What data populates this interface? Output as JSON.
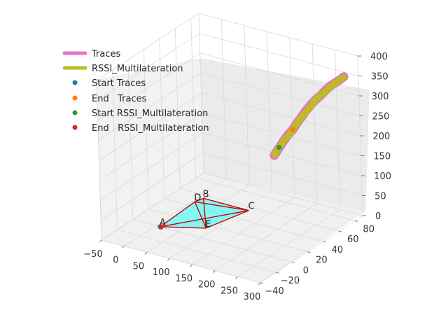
{
  "chart_data": {
    "type": "line",
    "projection": "3d",
    "title": "",
    "xlabel": "",
    "ylabel": "",
    "zlabel": "",
    "xlim": [
      -50,
      300
    ],
    "ylim": [
      -40,
      90
    ],
    "zlim": [
      0,
      400
    ],
    "x_ticks": [
      "−50",
      "0",
      "50",
      "100",
      "150",
      "200",
      "250",
      "300"
    ],
    "y_ticks": [
      "−40",
      "−20",
      "0",
      "20",
      "40",
      "60",
      "80"
    ],
    "z_ticks": [
      "0",
      "50",
      "100",
      "150",
      "200",
      "250",
      "300",
      "350",
      "400"
    ],
    "legend": {
      "placement": "upper-left",
      "entries": [
        {
          "label": "Traces",
          "kind": "line",
          "color": "#e377c2"
        },
        {
          "label": "RSSI_Multilateration",
          "kind": "line",
          "color": "#bcbd22"
        },
        {
          "label": "Start Traces",
          "kind": "marker",
          "color": "#1f77b4"
        },
        {
          "label": "End   Traces",
          "kind": "marker",
          "color": "#ff7f0e"
        },
        {
          "label": "Start RSSI_Multilateration",
          "kind": "marker",
          "color": "#2ca02c"
        },
        {
          "label": "End   RSSI_Multilateration",
          "kind": "marker",
          "color": "#d62728"
        }
      ]
    },
    "anchors": [
      {
        "name": "A",
        "x": 10,
        "y": 0,
        "z": 0
      },
      {
        "name": "B",
        "x": 10,
        "y": 55,
        "z": 0
      },
      {
        "name": "C",
        "x": 110,
        "y": 55,
        "z": 0
      },
      {
        "name": "D",
        "x": 5,
        "y": 47,
        "z": 0
      },
      {
        "name": "E",
        "x": 85,
        "y": 15,
        "z": 0
      }
    ],
    "polygon": {
      "vertices": [
        "A",
        "D",
        "B",
        "C",
        "E"
      ],
      "fill": "#00ffff",
      "fill_opacity": 0.45,
      "edge_color": "#cc0000"
    },
    "series": [
      {
        "name": "Traces",
        "color": "#e377c2",
        "points": [
          [
            222,
            26,
            210
          ],
          [
            226,
            30,
            225
          ],
          [
            230,
            33,
            238
          ],
          [
            235,
            37,
            252
          ],
          [
            240,
            40,
            262
          ],
          [
            244,
            43,
            275
          ],
          [
            249,
            46,
            288
          ],
          [
            253,
            49,
            300
          ],
          [
            258,
            53,
            312
          ],
          [
            263,
            56,
            322
          ],
          [
            268,
            60,
            330
          ],
          [
            273,
            64,
            340
          ],
          [
            278,
            68,
            348
          ],
          [
            282,
            72,
            352
          ],
          [
            286,
            75,
            356
          ],
          [
            289,
            78,
            360
          ]
        ]
      },
      {
        "name": "RSSI_Multilateration",
        "color": "#bcbd22",
        "points": [
          [
            223,
            26,
            212
          ],
          [
            226,
            30,
            226
          ],
          [
            231,
            33,
            240
          ],
          [
            236,
            37,
            250
          ],
          [
            240,
            40,
            262
          ],
          [
            245,
            43,
            276
          ],
          [
            249,
            46,
            287
          ],
          [
            254,
            50,
            300
          ],
          [
            259,
            53,
            310
          ],
          [
            263,
            56,
            322
          ],
          [
            268,
            60,
            331
          ],
          [
            274,
            64,
            338
          ],
          [
            278,
            68,
            346
          ],
          [
            283,
            72,
            352
          ],
          [
            286,
            75,
            357
          ],
          [
            289,
            78,
            358
          ]
        ]
      }
    ],
    "markers": [
      {
        "name": "Start Traces",
        "color": "#1f77b4",
        "x": 10,
        "y": 0,
        "z": 0
      },
      {
        "name": "End   Traces",
        "color": "#ff7f0e",
        "x": 240,
        "y": 40,
        "z": 262
      },
      {
        "name": "Start RSSI_Multilateration",
        "color": "#2ca02c",
        "x": 226,
        "y": 30,
        "z": 226
      },
      {
        "name": "End   RSSI_Multilateration",
        "color": "#d62728",
        "x": 12,
        "y": 0,
        "z": 0
      }
    ]
  }
}
